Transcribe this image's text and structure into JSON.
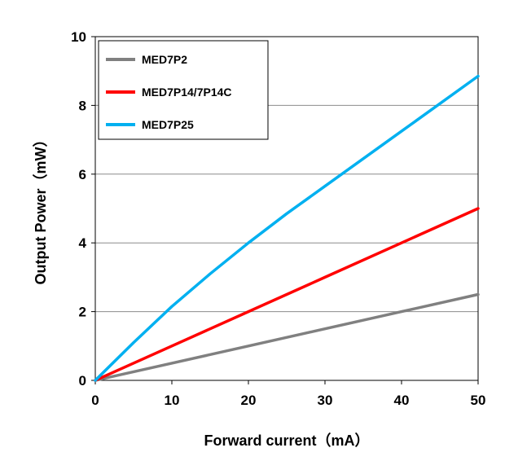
{
  "chart_data": {
    "type": "line",
    "title": "",
    "xlabel": "Forward current（mA）",
    "ylabel": "Output Power（mW）",
    "xlim": [
      0,
      50
    ],
    "ylim": [
      0,
      10
    ],
    "xticks": [
      "0",
      "10",
      "20",
      "30",
      "40",
      "50"
    ],
    "yticks": [
      "0",
      "2",
      "4",
      "6",
      "8",
      "10"
    ],
    "grid": "horizontal",
    "legend_position": "top-left",
    "series": [
      {
        "name": "MED7P2",
        "color": "#808080",
        "x": [
          0,
          10,
          20,
          30,
          40,
          50
        ],
        "y": [
          0,
          0.5,
          1.0,
          1.5,
          2.0,
          2.5
        ]
      },
      {
        "name": "MED7P14/7P14C",
        "color": "#ff0000",
        "x": [
          0,
          10,
          20,
          30,
          40,
          50
        ],
        "y": [
          0,
          1.0,
          2.0,
          3.0,
          4.0,
          5.0
        ]
      },
      {
        "name": "MED7P25",
        "color": "#00b0f0",
        "x": [
          0,
          5,
          10,
          15,
          20,
          25,
          30,
          35,
          40,
          45,
          50
        ],
        "y": [
          0,
          1.1,
          2.15,
          3.1,
          4.0,
          4.85,
          5.65,
          6.45,
          7.25,
          8.05,
          8.85
        ]
      }
    ]
  }
}
